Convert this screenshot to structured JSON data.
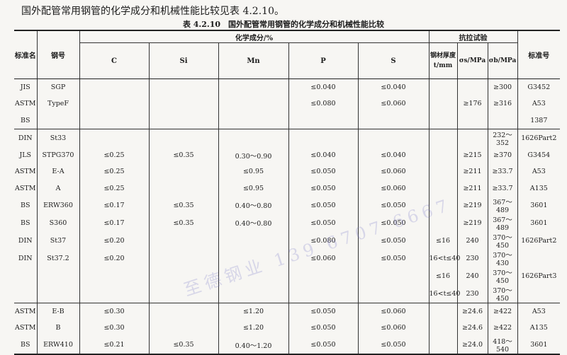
{
  "intro_text": "国外配管常用钢管的化学成分和机械性能比较见表 4.2.10。",
  "caption": "表 4.2.10　国外配管常用钢管的化学成分和机械性能比较",
  "headers": {
    "standard": "标准名",
    "grade": "钢号",
    "chem_group": "化学成分/%",
    "tensile_group": "抗拉试验",
    "C": "C",
    "Si": "Si",
    "Mn": "Mn",
    "P": "P",
    "S": "S",
    "thickness_line1": "钢材厚度",
    "thickness_line2": "t/mm",
    "sigma_s": "σs/MPa",
    "sigma_b": "σb/MPa",
    "std_no": "标准号"
  },
  "watermark": "至德钢业 139 6707 6667",
  "groups": [
    [
      [
        "JIS",
        "SGP",
        "",
        "",
        "",
        "≤0.040",
        "≤0.040",
        "",
        "",
        "≥300",
        "G3452"
      ],
      [
        "ASTM",
        "TypeF",
        "",
        "",
        "",
        "≤0.080",
        "≤0.060",
        "",
        "≥176",
        "≥316",
        "A53"
      ],
      [
        "BS",
        "",
        "",
        "",
        "",
        "",
        "",
        "",
        "",
        "",
        "1387"
      ]
    ],
    [
      [
        "DIN",
        "St33",
        "",
        "",
        "",
        "",
        "",
        "",
        "",
        "232～352",
        "1626Part2"
      ],
      [
        "JLS",
        "STPG370",
        "≤0.25",
        "≤0.35",
        "0.30～0.90",
        "≤0.040",
        "≤0.040",
        "",
        "≥215",
        "≥370",
        "G3454"
      ],
      [
        "ASTM",
        "E-A",
        "≤0.25",
        "",
        "≤0.95",
        "≤0.050",
        "≤0.060",
        "",
        "≥211",
        "≥33.7",
        "A53"
      ],
      [
        "ASTM",
        "A",
        "≤0.25",
        "",
        "≤0.95",
        "≤0.050",
        "≤0.060",
        "",
        "≥211",
        "≥33.7",
        "A135"
      ],
      [
        "BS",
        "ERW360",
        "≤0.17",
        "≤0.35",
        "0.40～0.80",
        "≤0.050",
        "≤0.050",
        "",
        "≥219",
        "367～489",
        "3601"
      ],
      [
        "BS",
        "S360",
        "≤0.17",
        "≤0.35",
        "0.40～0.80",
        "≤0.050",
        "≤0.050",
        "",
        "≥219",
        "367～489",
        "3601"
      ],
      [
        "DIN",
        "St37",
        "≤0.20",
        "",
        "",
        "≤0.080",
        "≤0.050",
        "≤16",
        "240",
        "370～450",
        "1626Part2"
      ],
      [
        "DIN",
        "St37.2",
        "≤0.20",
        "",
        "",
        "≤0.060",
        "≤0.050",
        "16<t≤40",
        "230",
        "370～430",
        ""
      ],
      [
        "",
        "",
        "",
        "",
        "",
        "",
        "",
        "≤16",
        "240",
        "370～450",
        "1626Part3"
      ],
      [
        "",
        "",
        "",
        "",
        "",
        "",
        "",
        "16<t≤40",
        "230",
        "370～450",
        ""
      ]
    ],
    [
      [
        "ASTM",
        "E-B",
        "≤0.30",
        "",
        "≤1.20",
        "≤0.050",
        "≤0.060",
        "",
        "≥24.6",
        "≥422",
        "A53"
      ],
      [
        "ASTM",
        "B",
        "≤0.30",
        "",
        "≤1.20",
        "≤0.050",
        "≤0.060",
        "",
        "≥24.6",
        "≥422",
        "A135"
      ],
      [
        "BS",
        "ERW410",
        "≤0.21",
        "≤0.35",
        "0.40～1.20",
        "≤0.050",
        "≤0.050",
        "",
        "≥24.0",
        "418～540",
        "3601"
      ]
    ]
  ]
}
